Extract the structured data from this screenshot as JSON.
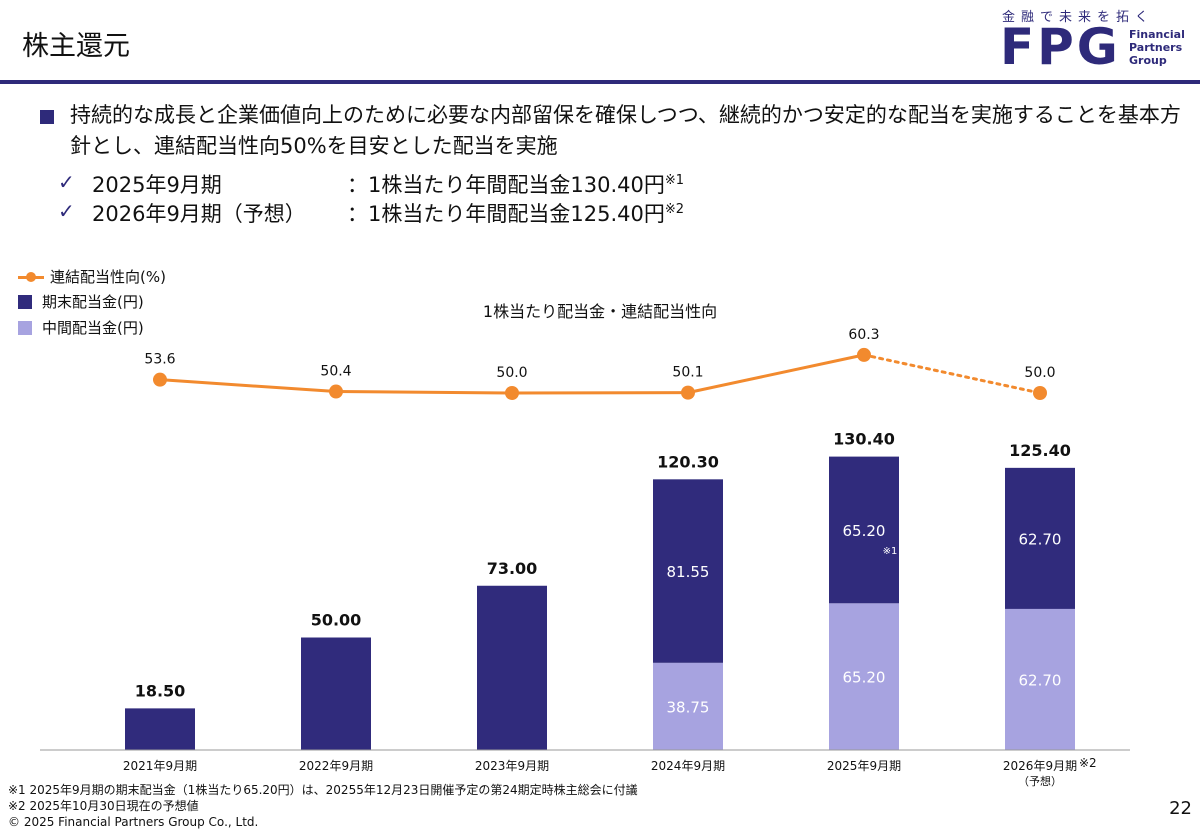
{
  "header": {
    "title": "株主還元",
    "logo_tagline": "金融で未来を拓く",
    "logo_mark": "FPG",
    "logo_sub": [
      "Financial",
      "Partners",
      "Group"
    ]
  },
  "policy": {
    "text": "持続的な成長と企業価値向上のために必要な内部留保を確保しつつ、継続的かつ安定的な配当を実施することを基本方針とし、連結配当性向50%を目安とした配当を実施",
    "items": [
      {
        "check": "✓",
        "period": "2025年9月期",
        "desc": "：1株当たり年間配当金130.40円",
        "note": "※1"
      },
      {
        "check": "✓",
        "period": "2026年9月期（予想）",
        "desc": "：1株当たり年間配当金125.40円",
        "note": "※2"
      }
    ]
  },
  "legend": {
    "payout": "連結配当性向(%)",
    "year_end": "期末配当金(円)",
    "interim": "中間配当金(円)"
  },
  "colors": {
    "brand": "#2e2a7a",
    "year_end": "#302b7c",
    "interim": "#a7a3e0",
    "payout": "#f28a2e"
  },
  "chart_data": {
    "type": "bar",
    "title": "1株当たり配当金・連結配当性向",
    "categories": [
      "2021年9月期",
      "2022年9月期",
      "2023年9月期",
      "2024年9月期",
      "2025年9月期",
      "2026年9月期"
    ],
    "category_notes": [
      "",
      "",
      "",
      "",
      "",
      "※2"
    ],
    "category_sub": [
      "",
      "",
      "",
      "",
      "",
      "（予想）"
    ],
    "series": [
      {
        "name": "中間配当金(円)",
        "values": [
          0,
          0,
          0,
          38.75,
          65.2,
          62.7
        ],
        "labels": [
          "",
          "",
          "",
          "38.75",
          "65.20",
          "62.70"
        ]
      },
      {
        "name": "期末配当金(円)",
        "values": [
          18.5,
          50.0,
          73.0,
          81.55,
          65.2,
          62.7
        ],
        "labels": [
          "",
          "",
          "",
          "81.55",
          "65.20",
          "62.70"
        ],
        "notes": [
          "",
          "",
          "",
          "",
          "※1",
          ""
        ]
      }
    ],
    "totals": [
      "18.50",
      "50.00",
      "73.00",
      "120.30",
      "130.40",
      "125.40"
    ],
    "payout_ratio": {
      "name": "連結配当性向(%)",
      "values": [
        53.6,
        50.4,
        50.0,
        50.1,
        60.3,
        50.0
      ],
      "labels": [
        "53.6",
        "50.4",
        "50.0",
        "50.1",
        "60.3",
        "50.0"
      ],
      "forecast_from_index": 4
    },
    "ylim": [
      0,
      135
    ]
  },
  "footnotes": [
    "※1  2025年9月期の期末配当金（1株当たり65.20円）は、20255年12月23日開催予定の第24期定時株主総会に付議",
    "※2  2025年10月30日現在の予想値",
    "© 2025 Financial Partners Group Co., Ltd."
  ],
  "page_number": "22"
}
